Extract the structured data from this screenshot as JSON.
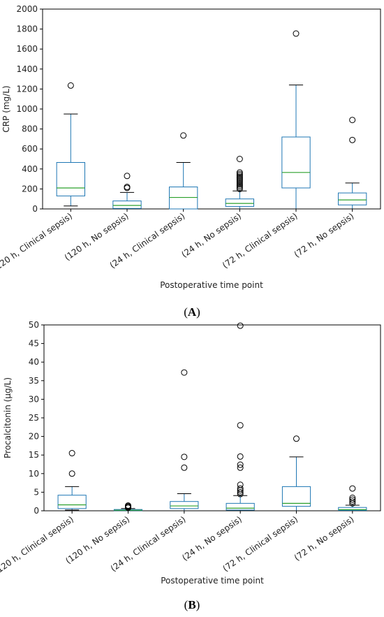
{
  "figure": {
    "panel_labels": [
      "(A)",
      "(B)"
    ]
  },
  "chart_data": [
    {
      "type": "box",
      "panel": "A",
      "xlabel": "Postoperative time point",
      "ylabel": "CRP (mg/L)",
      "ylim": [
        0,
        2000
      ],
      "yticks": [
        0,
        200,
        400,
        600,
        800,
        1000,
        1200,
        1400,
        1600,
        1800,
        2000
      ],
      "grid": false,
      "categories": [
        "(120 h, Clinical sepsis)",
        "(120 h, No sepsis)",
        "(24 h, Clinical sepsis)",
        "(24 h, No sepsis)",
        "(72 h, Clinical sepsis)",
        "(72 h, No sepsis)"
      ],
      "boxes": [
        {
          "whislo": 30,
          "q1": 130,
          "med": 210,
          "q3": 465,
          "whishi": 950,
          "fliers": [
            1235
          ]
        },
        {
          "whislo": 0,
          "q1": 5,
          "med": 35,
          "q3": 80,
          "whishi": 165,
          "fliers": [
            210,
            220,
            330
          ]
        },
        {
          "whislo": 0,
          "q1": 0,
          "med": 115,
          "q3": 220,
          "whishi": 465,
          "fliers": [
            735
          ]
        },
        {
          "whislo": 0,
          "q1": 25,
          "med": 55,
          "q3": 100,
          "whishi": 180,
          "fliers": [
            200,
            215,
            230,
            245,
            260,
            275,
            290,
            305,
            320,
            335,
            350,
            365,
            500
          ]
        },
        {
          "whislo": 0,
          "q1": 210,
          "med": 365,
          "q3": 720,
          "whishi": 1240,
          "fliers": [
            1755
          ]
        },
        {
          "whislo": 0,
          "q1": 40,
          "med": 90,
          "q3": 160,
          "whishi": 260,
          "fliers": [
            690,
            890
          ]
        }
      ]
    },
    {
      "type": "box",
      "panel": "B",
      "xlabel": "Postoperative time point",
      "ylabel": "Procalcitonin (µg/L)",
      "ylim": [
        0,
        50
      ],
      "yticks": [
        0,
        5,
        10,
        15,
        20,
        25,
        30,
        35,
        40,
        45,
        50
      ],
      "grid": false,
      "categories": [
        "(120 h, Clinical sepsis)",
        "(120 h, No sepsis)",
        "(24 h, Clinical sepsis)",
        "(24 h, No sepsis)",
        "(72 h, Clinical sepsis)",
        "(72 h, No sepsis)"
      ],
      "boxes": [
        {
          "whislo": 0.2,
          "q1": 0.6,
          "med": 1.6,
          "q3": 4.2,
          "whishi": 6.5,
          "fliers": [
            10.0,
            15.5
          ]
        },
        {
          "whislo": 0.0,
          "q1": 0.05,
          "med": 0.15,
          "q3": 0.35,
          "whishi": 0.6,
          "fliers": [
            0.8,
            1.0,
            1.2,
            1.4
          ]
        },
        {
          "whislo": 0.0,
          "q1": 0.6,
          "med": 1.3,
          "q3": 2.5,
          "whishi": 4.6,
          "fliers": [
            11.6,
            14.5,
            37.2
          ]
        },
        {
          "whislo": 0.0,
          "q1": 0.2,
          "med": 0.7,
          "q3": 2.0,
          "whishi": 4.1,
          "fliers": [
            4.5,
            5.0,
            5.5,
            6.0,
            7.0,
            11.6,
            12.4,
            14.6,
            23.0,
            49.8
          ]
        },
        {
          "whislo": 0.0,
          "q1": 1.2,
          "med": 2.0,
          "q3": 6.5,
          "whishi": 14.5,
          "fliers": [
            19.4
          ]
        },
        {
          "whislo": 0.0,
          "q1": 0.1,
          "med": 0.3,
          "q3": 0.9,
          "whishi": 1.5,
          "fliers": [
            2.0,
            2.5,
            3.0,
            3.5,
            6.0
          ]
        }
      ]
    }
  ],
  "colors": {
    "box": "#1f77b4",
    "median": "#2ca02c",
    "whisker": "#000000",
    "flier": "#000000",
    "axes": "#000000"
  }
}
